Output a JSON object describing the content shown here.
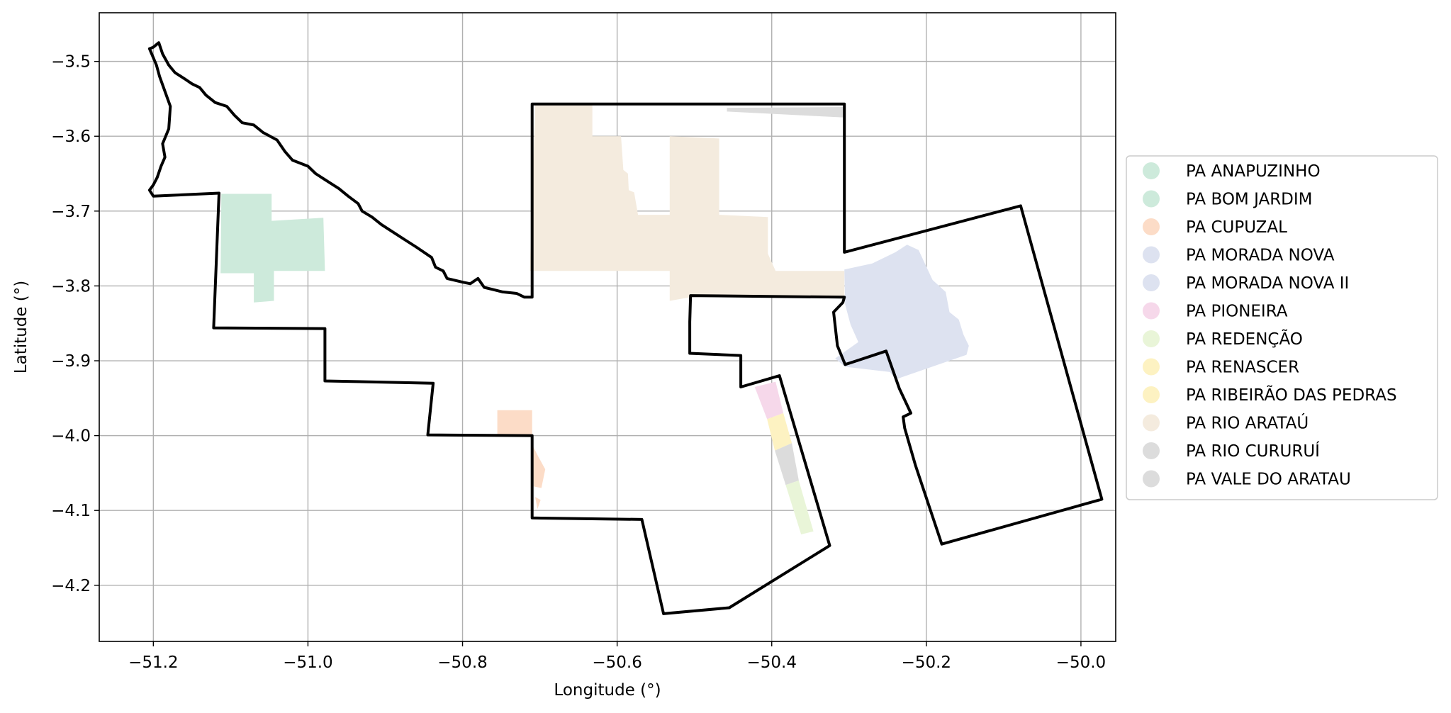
{
  "chart_data": {
    "type": "map",
    "xlabel": "Longitude (°)",
    "ylabel": "Latitude (°)",
    "xlim": [
      -51.27,
      -49.955
    ],
    "ylim": [
      -4.275,
      -3.435
    ],
    "xticks": [
      -51.2,
      -51.0,
      -50.8,
      -50.6,
      -50.4,
      -50.2,
      -50.0
    ],
    "yticks": [
      -3.5,
      -3.6,
      -3.7,
      -3.8,
      -3.9,
      -4.0,
      -4.1,
      -4.2
    ],
    "xtick_labels": [
      "−51.2",
      "−51.0",
      "−50.8",
      "−50.6",
      "−50.4",
      "−50.2",
      "−50.0"
    ],
    "ytick_labels": [
      "−3.5",
      "−3.6",
      "−3.7",
      "−3.8",
      "−3.9",
      "−4.0",
      "−4.1",
      "−4.2"
    ],
    "grid": true,
    "legend_position": "right",
    "outline_color": "#000000",
    "legend": [
      {
        "name": "PA ANAPUZINHO",
        "color": "#cdeadb"
      },
      {
        "name": "PA BOM JARDIM",
        "color": "#cdeadb"
      },
      {
        "name": "PA CUPUZAL",
        "color": "#fcdcc7"
      },
      {
        "name": "PA MORADA NOVA",
        "color": "#dde2f0"
      },
      {
        "name": "PA MORADA NOVA II",
        "color": "#dde2f0"
      },
      {
        "name": "PA PIONEIRA",
        "color": "#f6d8ea"
      },
      {
        "name": "PA REDENÇÃO",
        "color": "#e9f5d8"
      },
      {
        "name": "PA RENASCER",
        "color": "#fdf2c2"
      },
      {
        "name": "PA RIBEIRÃO DAS PEDRAS",
        "color": "#fdf2c2"
      },
      {
        "name": "PA RIO ARATAÚ",
        "color": "#f4ebde"
      },
      {
        "name": "PA RIO CURURUÍ",
        "color": "#dcdcdc"
      },
      {
        "name": "PA VALE DO ARATAU",
        "color": "#dcdcdc"
      }
    ],
    "regions": [
      {
        "name": "PA BOM JARDIM",
        "color": "#cdeadb",
        "coords": [
          [
            -51.112,
            -3.677
          ],
          [
            -51.047,
            -3.677
          ],
          [
            -51.047,
            -3.713
          ],
          [
            -50.98,
            -3.709
          ],
          [
            -50.978,
            -3.78
          ],
          [
            -51.044,
            -3.78
          ],
          [
            -51.044,
            -3.82
          ],
          [
            -51.07,
            -3.822
          ],
          [
            -51.07,
            -3.783
          ],
          [
            -51.113,
            -3.783
          ]
        ]
      },
      {
        "name": "PA CUPUZAL",
        "color": "#fcdcc7",
        "coords": [
          [
            -50.755,
            -3.966
          ],
          [
            -50.71,
            -3.966
          ],
          [
            -50.71,
            -4.012
          ],
          [
            -50.702,
            -4.028
          ],
          [
            -50.693,
            -4.045
          ],
          [
            -50.698,
            -4.07
          ],
          [
            -50.708,
            -4.068
          ],
          [
            -50.71,
            -4.002
          ],
          [
            -50.755,
            -4.0
          ]
        ]
      },
      {
        "name": "PA CUPUZAL",
        "color": "#fcdcc7",
        "coords": [
          [
            -50.706,
            -4.082
          ],
          [
            -50.699,
            -4.086
          ],
          [
            -50.703,
            -4.098
          ]
        ]
      },
      {
        "name": "PA RIO ARATAÚ",
        "color": "#f4ebde",
        "coords": [
          [
            -50.706,
            -3.558
          ],
          [
            -50.632,
            -3.558
          ],
          [
            -50.632,
            -3.6
          ],
          [
            -50.595,
            -3.6
          ],
          [
            -50.592,
            -3.645
          ],
          [
            -50.586,
            -3.65
          ],
          [
            -50.585,
            -3.672
          ],
          [
            -50.578,
            -3.675
          ],
          [
            -50.573,
            -3.705
          ],
          [
            -50.532,
            -3.705
          ],
          [
            -50.532,
            -3.6
          ],
          [
            -50.468,
            -3.603
          ],
          [
            -50.468,
            -3.628
          ],
          [
            -50.468,
            -3.705
          ],
          [
            -50.405,
            -3.708
          ],
          [
            -50.405,
            -3.757
          ],
          [
            -50.395,
            -3.78
          ],
          [
            -50.306,
            -3.78
          ],
          [
            -50.306,
            -3.815
          ],
          [
            -50.505,
            -3.815
          ],
          [
            -50.532,
            -3.82
          ],
          [
            -50.532,
            -3.78
          ],
          [
            -50.713,
            -3.78
          ]
        ]
      },
      {
        "name": "PA RIO CURURUÍ",
        "color": "#dcdcdc",
        "coords": [
          [
            -50.458,
            -3.562
          ],
          [
            -50.306,
            -3.561
          ],
          [
            -50.306,
            -3.575
          ],
          [
            -50.458,
            -3.567
          ]
        ]
      },
      {
        "name": "PA MORADA NOVA",
        "color": "#dde2f0",
        "coords": [
          [
            -50.306,
            -3.778
          ],
          [
            -50.27,
            -3.77
          ],
          [
            -50.24,
            -3.755
          ],
          [
            -50.225,
            -3.745
          ],
          [
            -50.21,
            -3.752
          ],
          [
            -50.192,
            -3.792
          ],
          [
            -50.175,
            -3.808
          ],
          [
            -50.17,
            -3.835
          ],
          [
            -50.158,
            -3.845
          ],
          [
            -50.152,
            -3.865
          ],
          [
            -50.145,
            -3.88
          ],
          [
            -50.148,
            -3.892
          ],
          [
            -50.24,
            -3.925
          ],
          [
            -50.247,
            -3.915
          ],
          [
            -50.305,
            -3.908
          ],
          [
            -50.318,
            -3.897
          ],
          [
            -50.288,
            -3.875
          ],
          [
            -50.298,
            -3.852
          ],
          [
            -50.305,
            -3.825
          ]
        ]
      },
      {
        "name": "PA PIONEIRA",
        "color": "#f6d8ea",
        "coords": [
          [
            -50.422,
            -3.935
          ],
          [
            -50.395,
            -3.928
          ],
          [
            -50.385,
            -3.97
          ],
          [
            -50.406,
            -3.978
          ]
        ]
      },
      {
        "name": "PA RENASCER",
        "color": "#fdf2c2",
        "coords": [
          [
            -50.406,
            -3.978
          ],
          [
            -50.385,
            -3.97
          ],
          [
            -50.374,
            -4.01
          ],
          [
            -50.396,
            -4.02
          ]
        ]
      },
      {
        "name": "PA VALE DO ARATAU",
        "color": "#dcdcdc",
        "coords": [
          [
            -50.396,
            -4.02
          ],
          [
            -50.374,
            -4.01
          ],
          [
            -50.365,
            -4.06
          ],
          [
            -50.382,
            -4.066
          ]
        ]
      },
      {
        "name": "PA REDENÇÃO",
        "color": "#e9f5d8",
        "coords": [
          [
            -50.382,
            -4.066
          ],
          [
            -50.365,
            -4.06
          ],
          [
            -50.346,
            -4.128
          ],
          [
            -50.362,
            -4.132
          ]
        ]
      }
    ],
    "outlines": [
      [
        [
          -51.2,
          -3.481
        ],
        [
          -51.193,
          -3.475
        ],
        [
          -51.188,
          -3.49
        ],
        [
          -51.18,
          -3.505
        ],
        [
          -51.172,
          -3.515
        ],
        [
          -51.16,
          -3.523
        ],
        [
          -51.15,
          -3.53
        ],
        [
          -51.14,
          -3.535
        ],
        [
          -51.132,
          -3.545
        ],
        [
          -51.12,
          -3.555
        ],
        [
          -51.105,
          -3.56
        ],
        [
          -51.095,
          -3.572
        ],
        [
          -51.085,
          -3.582
        ],
        [
          -51.07,
          -3.585
        ],
        [
          -51.058,
          -3.595
        ],
        [
          -51.04,
          -3.605
        ],
        [
          -51.03,
          -3.62
        ],
        [
          -51.02,
          -3.632
        ],
        [
          -51.0,
          -3.64
        ],
        [
          -50.99,
          -3.65
        ],
        [
          -50.975,
          -3.66
        ],
        [
          -50.96,
          -3.67
        ],
        [
          -50.948,
          -3.68
        ],
        [
          -50.935,
          -3.69
        ],
        [
          -50.93,
          -3.7
        ],
        [
          -50.917,
          -3.708
        ],
        [
          -50.905,
          -3.718
        ],
        [
          -50.89,
          -3.728
        ],
        [
          -50.875,
          -3.738
        ],
        [
          -50.86,
          -3.748
        ],
        [
          -50.85,
          -3.755
        ],
        [
          -50.84,
          -3.762
        ],
        [
          -50.835,
          -3.775
        ],
        [
          -50.825,
          -3.78
        ],
        [
          -50.82,
          -3.79
        ],
        [
          -50.8,
          -3.795
        ],
        [
          -50.79,
          -3.797
        ],
        [
          -50.78,
          -3.79
        ],
        [
          -50.772,
          -3.802
        ],
        [
          -50.76,
          -3.805
        ],
        [
          -50.748,
          -3.808
        ],
        [
          -50.73,
          -3.81
        ],
        [
          -50.72,
          -3.815
        ],
        [
          -50.71,
          -3.815
        ],
        [
          -50.71,
          -3.557
        ],
        [
          -50.306,
          -3.557
        ],
        [
          -50.306,
          -3.755
        ],
        [
          -50.078,
          -3.693
        ],
        [
          -49.973,
          -4.085
        ],
        [
          -50.18,
          -4.145
        ],
        [
          -50.214,
          -4.04
        ],
        [
          -50.228,
          -3.99
        ],
        [
          -50.23,
          -3.975
        ],
        [
          -50.22,
          -3.97
        ],
        [
          -50.235,
          -3.937
        ],
        [
          -50.252,
          -3.887
        ],
        [
          -50.29,
          -3.9
        ],
        [
          -50.305,
          -3.905
        ],
        [
          -50.315,
          -3.88
        ],
        [
          -50.32,
          -3.835
        ],
        [
          -50.308,
          -3.822
        ],
        [
          -50.306,
          -3.815
        ],
        [
          -50.505,
          -3.813
        ],
        [
          -50.506,
          -3.848
        ],
        [
          -50.506,
          -3.89
        ],
        [
          -50.44,
          -3.893
        ],
        [
          -50.44,
          -3.935
        ],
        [
          -50.39,
          -3.92
        ],
        [
          -50.325,
          -4.147
        ],
        [
          -50.455,
          -4.23
        ],
        [
          -50.54,
          -4.238
        ],
        [
          -50.568,
          -4.112
        ],
        [
          -50.71,
          -4.11
        ],
        [
          -50.71,
          -4.0
        ],
        [
          -50.845,
          -3.999
        ],
        [
          -50.838,
          -3.93
        ],
        [
          -50.978,
          -3.927
        ],
        [
          -50.978,
          -3.857
        ],
        [
          -51.122,
          -3.856
        ],
        [
          -51.115,
          -3.676
        ],
        [
          -51.2,
          -3.68
        ],
        [
          -51.205,
          -3.672
        ],
        [
          -51.2,
          -3.665
        ],
        [
          -51.195,
          -3.655
        ],
        [
          -51.19,
          -3.64
        ],
        [
          -51.185,
          -3.628
        ],
        [
          -51.188,
          -3.61
        ],
        [
          -51.18,
          -3.59
        ],
        [
          -51.178,
          -3.56
        ],
        [
          -51.185,
          -3.54
        ],
        [
          -51.192,
          -3.52
        ],
        [
          -51.196,
          -3.505
        ],
        [
          -51.205,
          -3.483
        ]
      ]
    ]
  }
}
